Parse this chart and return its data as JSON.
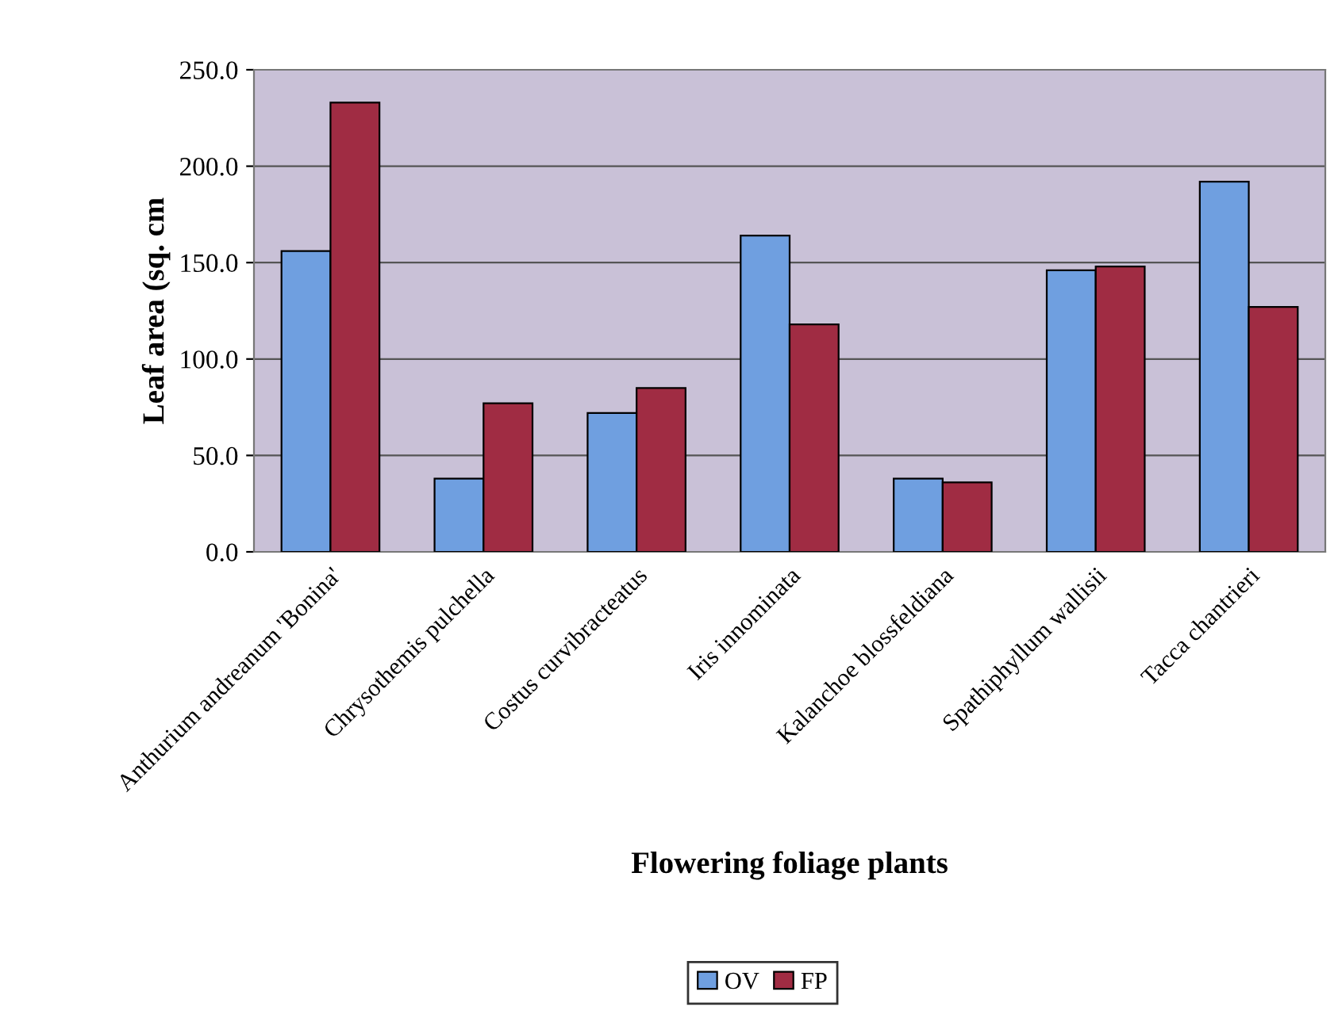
{
  "chart_data": {
    "type": "bar",
    "xlabel": "Flowering foliage plants",
    "ylabel": "Leaf area (sq. cm",
    "categories": [
      "Anthurium andreanum 'Bonina'",
      "Chrysothemis pulchella",
      "Costus curvibracteatus",
      "Iris innominata",
      "Kalanchoe blossfeldiana",
      "Spathiphyllum wallisii",
      "Tacca chantrieri"
    ],
    "series": [
      {
        "name": "OV",
        "color": "#6f9fe0",
        "values": [
          156,
          38,
          72,
          164,
          38,
          146,
          192
        ]
      },
      {
        "name": "FP",
        "color": "#a02c43",
        "values": [
          233,
          77,
          85,
          118,
          36,
          148,
          127
        ]
      }
    ],
    "ylim": [
      0,
      250
    ],
    "yticks": [
      {
        "value": 0,
        "label": "0.0"
      },
      {
        "value": 50,
        "label": "50.0"
      },
      {
        "value": 100,
        "label": "100.0"
      },
      {
        "value": 150,
        "label": "150.0"
      },
      {
        "value": 200,
        "label": "200.0"
      },
      {
        "value": 250,
        "label": "250.0"
      }
    ],
    "grid": "y",
    "legend": "bottom"
  }
}
